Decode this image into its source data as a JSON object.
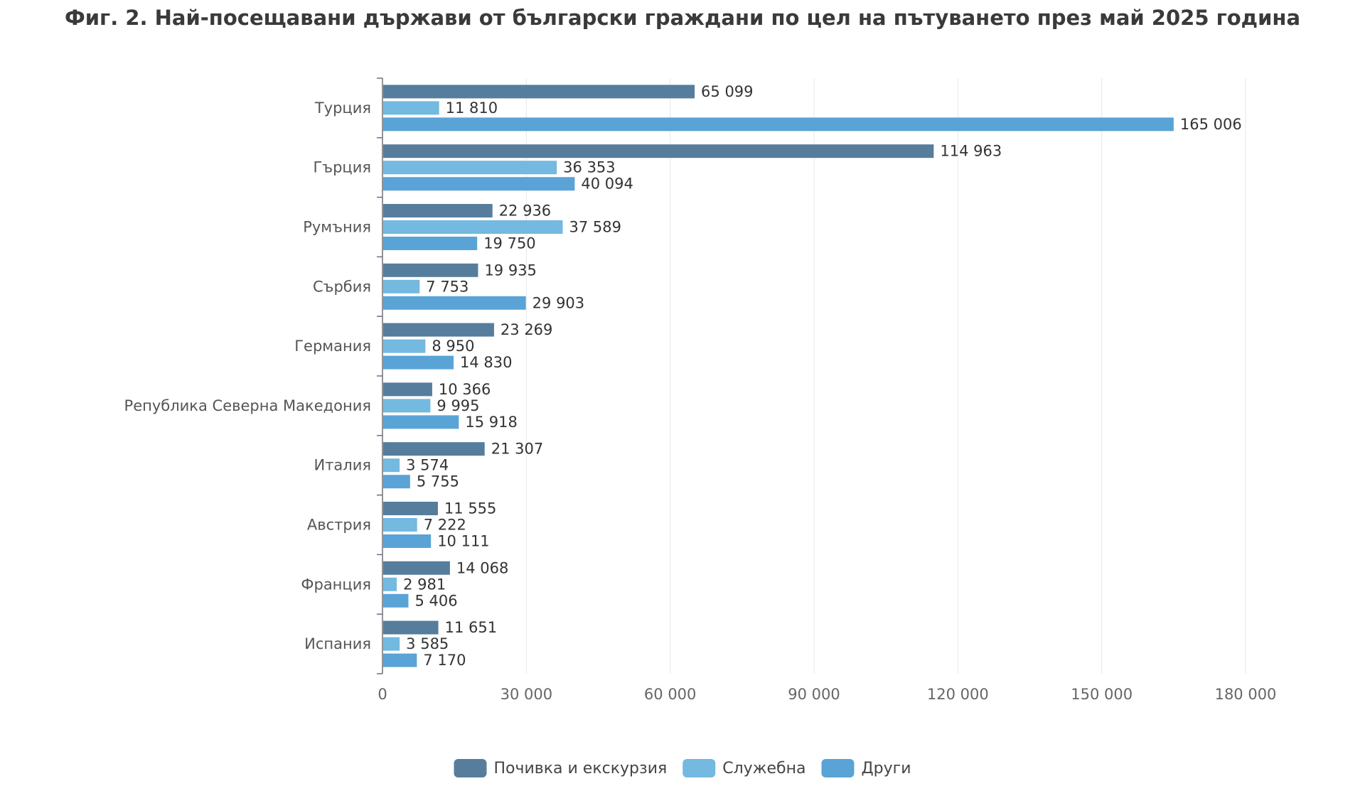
{
  "chart_data": {
    "type": "bar",
    "orientation": "horizontal",
    "title": "Фиг. 2. Най-посещавани държави от български граждани по цел на пътуването през май 2025 година",
    "categories": [
      "Турция",
      "Гърция",
      "Румъния",
      "Сърбия",
      "Германия",
      "Република Северна Македония",
      "Италия",
      "Австрия",
      "Франция",
      "Испания"
    ],
    "series": [
      {
        "name": "Почивка и екскурзия",
        "color": "#567d9c",
        "values": [
          65099,
          114963,
          22936,
          19935,
          23269,
          10366,
          21307,
          11555,
          14068,
          11651
        ]
      },
      {
        "name": "Служебна",
        "color": "#73b9e0",
        "values": [
          11810,
          36353,
          37589,
          7753,
          8950,
          9995,
          3574,
          7222,
          2981,
          3585
        ]
      },
      {
        "name": "Други",
        "color": "#5aa3d6",
        "values": [
          165006,
          40094,
          19750,
          29903,
          14830,
          15918,
          5755,
          10111,
          5406,
          7170
        ]
      }
    ],
    "xlim": [
      0,
      180000
    ],
    "xticks": [
      0,
      30000,
      60000,
      90000,
      120000,
      150000,
      180000
    ],
    "grid": true,
    "legend_position": "bottom-center",
    "number_format": "space-thousands"
  }
}
